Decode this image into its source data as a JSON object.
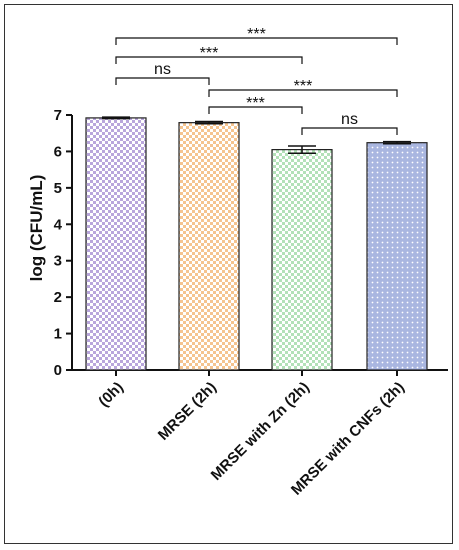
{
  "chart_data": {
    "type": "bar",
    "categories": [
      "(0h)",
      "MRSE (2h)",
      "MRSE with Zn (2h)",
      "MRSE with CNFs (2h)"
    ],
    "values": [
      6.92,
      6.79,
      6.05,
      6.24
    ],
    "errors": [
      0.02,
      0.03,
      0.1,
      0.03
    ],
    "ylabel": "log (CFU/mL)",
    "xlabel": "",
    "title": "",
    "ylim": [
      0,
      7
    ],
    "yticks": [
      0,
      1,
      2,
      3,
      4,
      5,
      6,
      7
    ],
    "bar_colors": [
      "#b9a6dc",
      "#f5c48f",
      "#b3e1b8",
      "#a9b6e0"
    ],
    "bar_patterns": [
      "checker",
      "checker",
      "checker",
      "dots"
    ],
    "significance": [
      {
        "from": 0,
        "to": 3,
        "label": "***"
      },
      {
        "from": 0,
        "to": 2,
        "label": "***"
      },
      {
        "from": 0,
        "to": 1,
        "label": "ns"
      },
      {
        "from": 1,
        "to": 3,
        "label": "***"
      },
      {
        "from": 1,
        "to": 2,
        "label": "***"
      },
      {
        "from": 2,
        "to": 3,
        "label": "ns"
      }
    ]
  }
}
